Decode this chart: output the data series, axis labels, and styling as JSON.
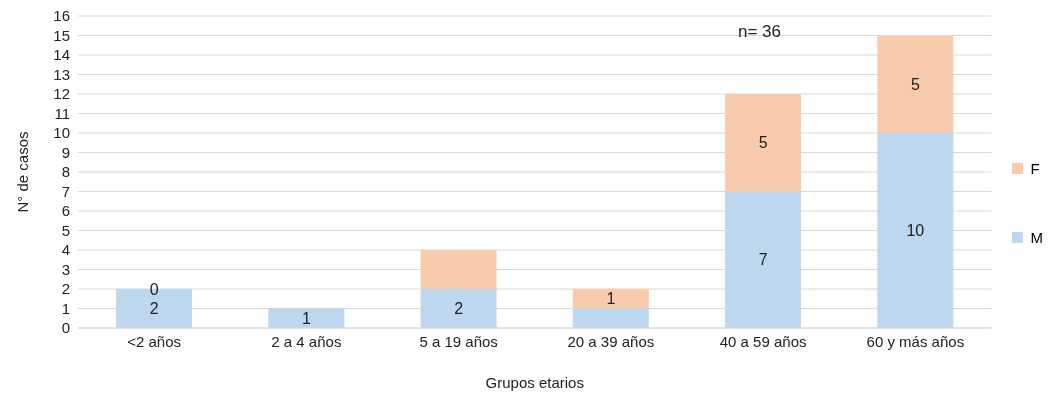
{
  "chart_data": {
    "type": "bar",
    "stacked": true,
    "xlabel": "Grupos etarios",
    "ylabel": "N° de casos",
    "categories": [
      "<2 años",
      "2 a 4 años",
      "5 a 19 años",
      "20 a 39 años",
      "40 a 59 años",
      "60 y más años"
    ],
    "series": [
      {
        "name": "M",
        "color": "#bdd7ee",
        "values": [
          2,
          1,
          2,
          1,
          7,
          10
        ],
        "value_labels": [
          "2",
          "1",
          "2",
          null,
          "7",
          "10"
        ]
      },
      {
        "name": "F",
        "color": "#f8cbad",
        "values": [
          0,
          0,
          2,
          1,
          5,
          5
        ],
        "value_labels": [
          "0",
          null,
          null,
          "1",
          "5",
          "5"
        ]
      }
    ],
    "ylim": [
      0,
      16
    ],
    "yticks": [
      0,
      1,
      2,
      3,
      4,
      5,
      6,
      7,
      8,
      9,
      10,
      11,
      12,
      13,
      14,
      15,
      16
    ],
    "grid": "y",
    "legend": "right",
    "annotations": [
      "n= 36"
    ]
  }
}
